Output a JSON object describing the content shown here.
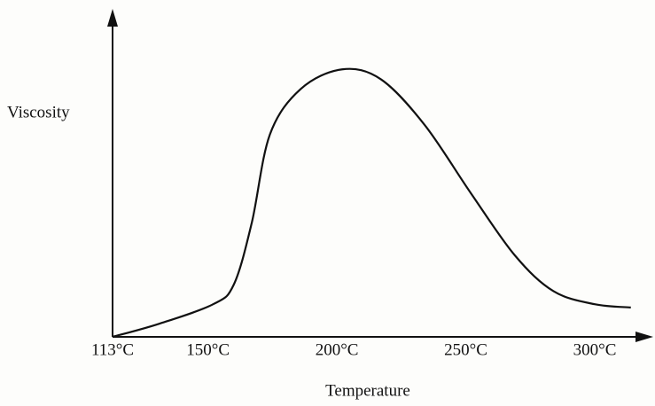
{
  "chart_data": {
    "type": "line",
    "xlabel": "Temperature",
    "ylabel": "Viscosity",
    "x": [
      113,
      131,
      152,
      160,
      167,
      174,
      186,
      202,
      217,
      234,
      252,
      269,
      284,
      300,
      314
    ],
    "series": [
      {
        "color": "#111111",
        "values": [
          0,
          4,
          10,
          16,
          35,
          62,
          76,
          82,
          79,
          65,
          44,
          25,
          14,
          10,
          9
        ]
      }
    ],
    "xlim": [
      113,
      322
    ],
    "ylim": [
      0,
      100
    ],
    "xticks": [
      {
        "value": 113,
        "label": "113°C"
      },
      {
        "value": 150,
        "label": "150°C"
      },
      {
        "value": 200,
        "label": "200°C"
      },
      {
        "value": 250,
        "label": "250°C"
      },
      {
        "value": 300,
        "label": "300°C"
      }
    ],
    "yticks": [],
    "grid": false
  }
}
